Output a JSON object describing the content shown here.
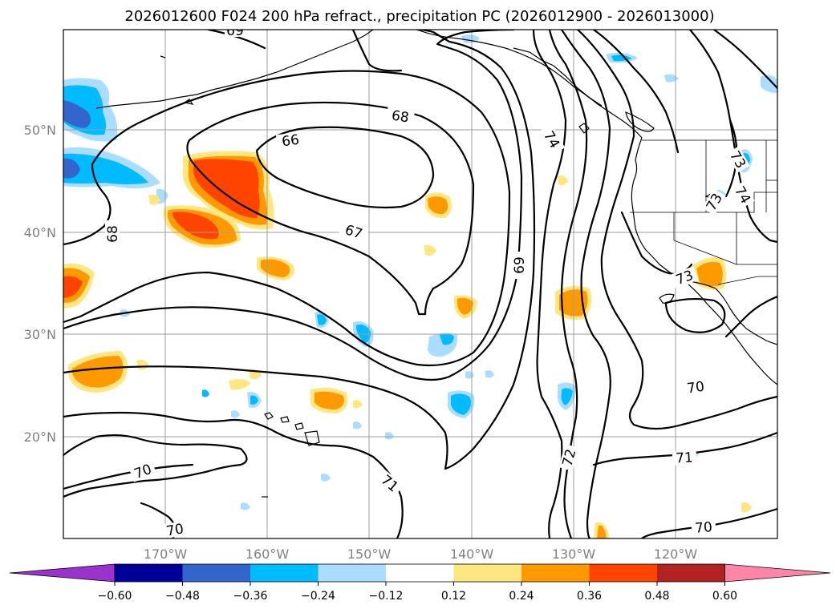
{
  "title": "2026012600 F024 200 hPa refract., precipitation PC (2026012900 - 2026013000)",
  "lat_labels": [
    "50°N",
    "40°N",
    "30°N",
    "20°N"
  ],
  "lon_labels": [
    "170°W",
    "160°W",
    "150°W",
    "140°W",
    "130°W",
    "120°W"
  ],
  "contour_labels": [
    "69",
    "68",
    "66",
    "67",
    "68",
    "69",
    "74",
    "73",
    "74",
    "73",
    "73",
    "70",
    "70",
    "71",
    "72",
    "71",
    "70"
  ],
  "colorbar": {
    "ticks": [
      "−0.60",
      "−0.48",
      "−0.36",
      "−0.24",
      "−0.12",
      "0.12",
      "0.24",
      "0.36",
      "0.48",
      "0.60"
    ],
    "colors": [
      "#9933cc",
      "#000099",
      "#3366cc",
      "#00bbff",
      "#aaddff",
      "#ffffff",
      "#ffe680",
      "#ff9900",
      "#ff4400",
      "#b22222",
      "#ff85a8"
    ]
  },
  "colors": {
    "gridline": "#9e9e9e",
    "axis_label": "#808080"
  }
}
